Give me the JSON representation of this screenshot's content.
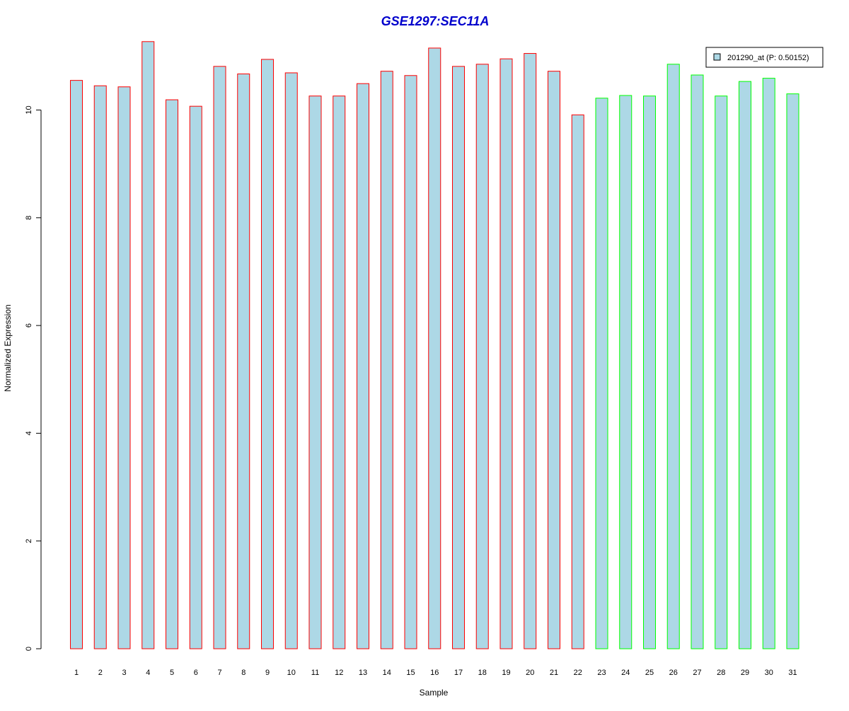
{
  "chart_data": {
    "type": "bar",
    "title": "GSE1297:SEC11A",
    "xlabel": "Sample",
    "ylabel": "Normalized Expression",
    "ylim": [
      0,
      11.3
    ],
    "yticks": [
      0,
      2,
      4,
      6,
      8,
      10
    ],
    "categories": [
      "1",
      "2",
      "3",
      "4",
      "5",
      "6",
      "7",
      "8",
      "9",
      "10",
      "11",
      "12",
      "13",
      "14",
      "15",
      "16",
      "17",
      "18",
      "19",
      "20",
      "21",
      "22",
      "23",
      "24",
      "25",
      "26",
      "27",
      "28",
      "29",
      "30",
      "31"
    ],
    "series": [
      {
        "name": "201290_at (P: 0.50152)",
        "fill": "#add8e6",
        "values": [
          10.55,
          10.45,
          10.43,
          11.27,
          10.19,
          10.07,
          10.81,
          10.67,
          10.94,
          10.69,
          10.26,
          10.26,
          10.49,
          10.72,
          10.64,
          11.15,
          10.81,
          10.85,
          10.95,
          11.05,
          10.72,
          9.91,
          10.22,
          10.27,
          10.26,
          10.85,
          10.65,
          10.26,
          10.53,
          10.59,
          10.3
        ]
      }
    ],
    "border_colors": [
      "#ff0000",
      "#ff0000",
      "#ff0000",
      "#ff0000",
      "#ff0000",
      "#ff0000",
      "#ff0000",
      "#ff0000",
      "#ff0000",
      "#ff0000",
      "#ff0000",
      "#ff0000",
      "#ff0000",
      "#ff0000",
      "#ff0000",
      "#ff0000",
      "#ff0000",
      "#ff0000",
      "#ff0000",
      "#ff0000",
      "#ff0000",
      "#ff0000",
      "#00ff00",
      "#00ff00",
      "#00ff00",
      "#00ff00",
      "#00ff00",
      "#00ff00",
      "#00ff00",
      "#00ff00",
      "#00ff00"
    ],
    "legend": {
      "label": "201290_at (P: 0.50152)",
      "position": "top-right"
    },
    "title_color": "#0000cc",
    "grid": false
  }
}
